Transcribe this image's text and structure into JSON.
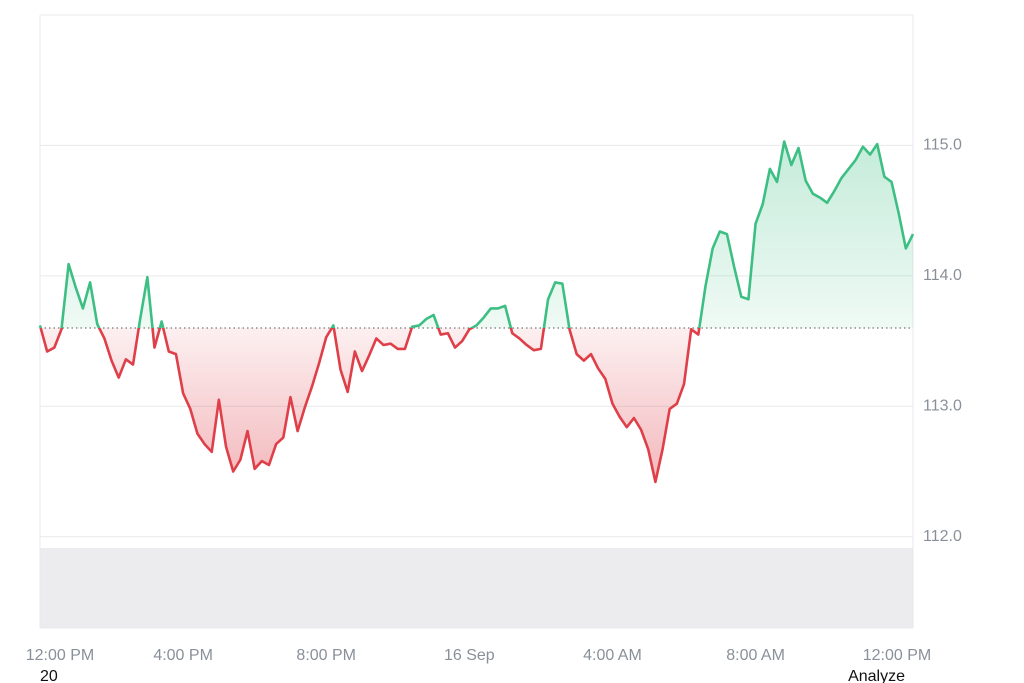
{
  "chart_data": {
    "type": "line",
    "x": [
      0,
      0.2,
      0.4,
      0.6,
      0.8,
      1,
      1.2,
      1.4,
      1.6,
      1.8,
      2,
      2.2,
      2.4,
      2.6,
      2.8,
      3,
      3.2,
      3.4,
      3.6,
      3.8,
      4,
      4.2,
      4.4,
      4.6,
      4.8,
      5,
      5.2,
      5.4,
      5.6,
      5.8,
      6,
      6.2,
      6.4,
      6.6,
      6.8,
      7,
      7.2,
      7.4,
      7.6,
      7.8,
      8,
      8.2,
      8.4,
      8.6,
      8.8,
      9,
      9.2,
      9.4,
      9.6,
      9.8,
      10,
      10.2,
      10.4,
      10.6,
      10.8,
      11,
      11.2,
      11.4,
      11.6,
      11.8,
      12,
      12.2,
      12.4,
      12.6,
      12.8,
      13,
      13.2,
      13.4,
      13.6,
      13.8,
      14,
      14.2,
      14.4,
      14.6,
      14.8,
      15,
      15.2,
      15.4,
      15.6,
      15.8,
      16,
      16.2,
      16.4,
      16.6,
      16.8,
      17,
      17.2,
      17.4,
      17.6,
      17.8,
      18,
      18.2,
      18.4,
      18.6,
      18.8,
      19,
      19.2,
      19.4,
      19.6,
      19.8,
      20,
      20.2,
      20.4,
      20.6,
      20.8,
      21,
      21.2,
      21.4,
      21.6,
      21.8,
      22,
      22.2,
      22.4,
      22.6,
      22.8,
      23,
      23.2,
      23.4,
      23.6,
      23.8,
      24,
      24.2,
      24.4
    ],
    "values": [
      113.62,
      113.42,
      113.45,
      113.59,
      114.09,
      113.91,
      113.75,
      113.95,
      113.63,
      113.52,
      113.35,
      113.22,
      113.36,
      113.32,
      113.67,
      113.99,
      113.45,
      113.65,
      113.42,
      113.4,
      113.1,
      112.98,
      112.79,
      112.71,
      112.65,
      113.05,
      112.69,
      112.5,
      112.59,
      112.81,
      112.52,
      112.58,
      112.55,
      112.71,
      112.76,
      113.07,
      112.81,
      112.99,
      113.15,
      113.33,
      113.53,
      113.62,
      113.28,
      113.11,
      113.42,
      113.27,
      113.39,
      113.52,
      113.47,
      113.48,
      113.44,
      113.44,
      113.61,
      113.62,
      113.67,
      113.7,
      113.55,
      113.56,
      113.45,
      113.5,
      113.59,
      113.62,
      113.68,
      113.75,
      113.75,
      113.77,
      113.56,
      113.52,
      113.47,
      113.43,
      113.44,
      113.82,
      113.95,
      113.94,
      113.59,
      113.4,
      113.35,
      113.4,
      113.29,
      113.21,
      113.02,
      112.92,
      112.84,
      112.91,
      112.82,
      112.67,
      112.42,
      112.67,
      112.98,
      113.02,
      113.17,
      113.59,
      113.55,
      113.92,
      114.21,
      114.34,
      114.32,
      114.07,
      113.84,
      113.82,
      114.4,
      114.55,
      114.82,
      114.72,
      115.03,
      114.85,
      114.98,
      114.73,
      114.63,
      114.6,
      114.56,
      114.65,
      114.75,
      114.82,
      114.89,
      114.99,
      114.93,
      115.01,
      114.76,
      114.72,
      114.48,
      114.21,
      114.32
    ],
    "baseline": 113.6,
    "up_color": "#3dbf83",
    "down_color": "#de3f49",
    "xlim": [
      0,
      24.4
    ],
    "xticks": [
      {
        "value": 0,
        "label": "12:00 PM"
      },
      {
        "value": 4,
        "label": "4:00 PM"
      },
      {
        "value": 8,
        "label": "8:00 PM"
      },
      {
        "value": 12,
        "label": "16 Sep"
      },
      {
        "value": 16,
        "label": "4:00 AM"
      },
      {
        "value": 20,
        "label": "8:00 AM"
      },
      {
        "value": 24,
        "label": "12:00 PM"
      }
    ],
    "ylim": [
      111.3,
      116.0
    ],
    "yticks": [
      {
        "value": 112,
        "label": "112.0"
      },
      {
        "value": 113,
        "label": "113.0"
      },
      {
        "value": 114,
        "label": "114.0"
      },
      {
        "value": 115,
        "label": "115.0"
      }
    ],
    "grid": true
  },
  "footer": {
    "left": "20",
    "right": "Analyze"
  }
}
